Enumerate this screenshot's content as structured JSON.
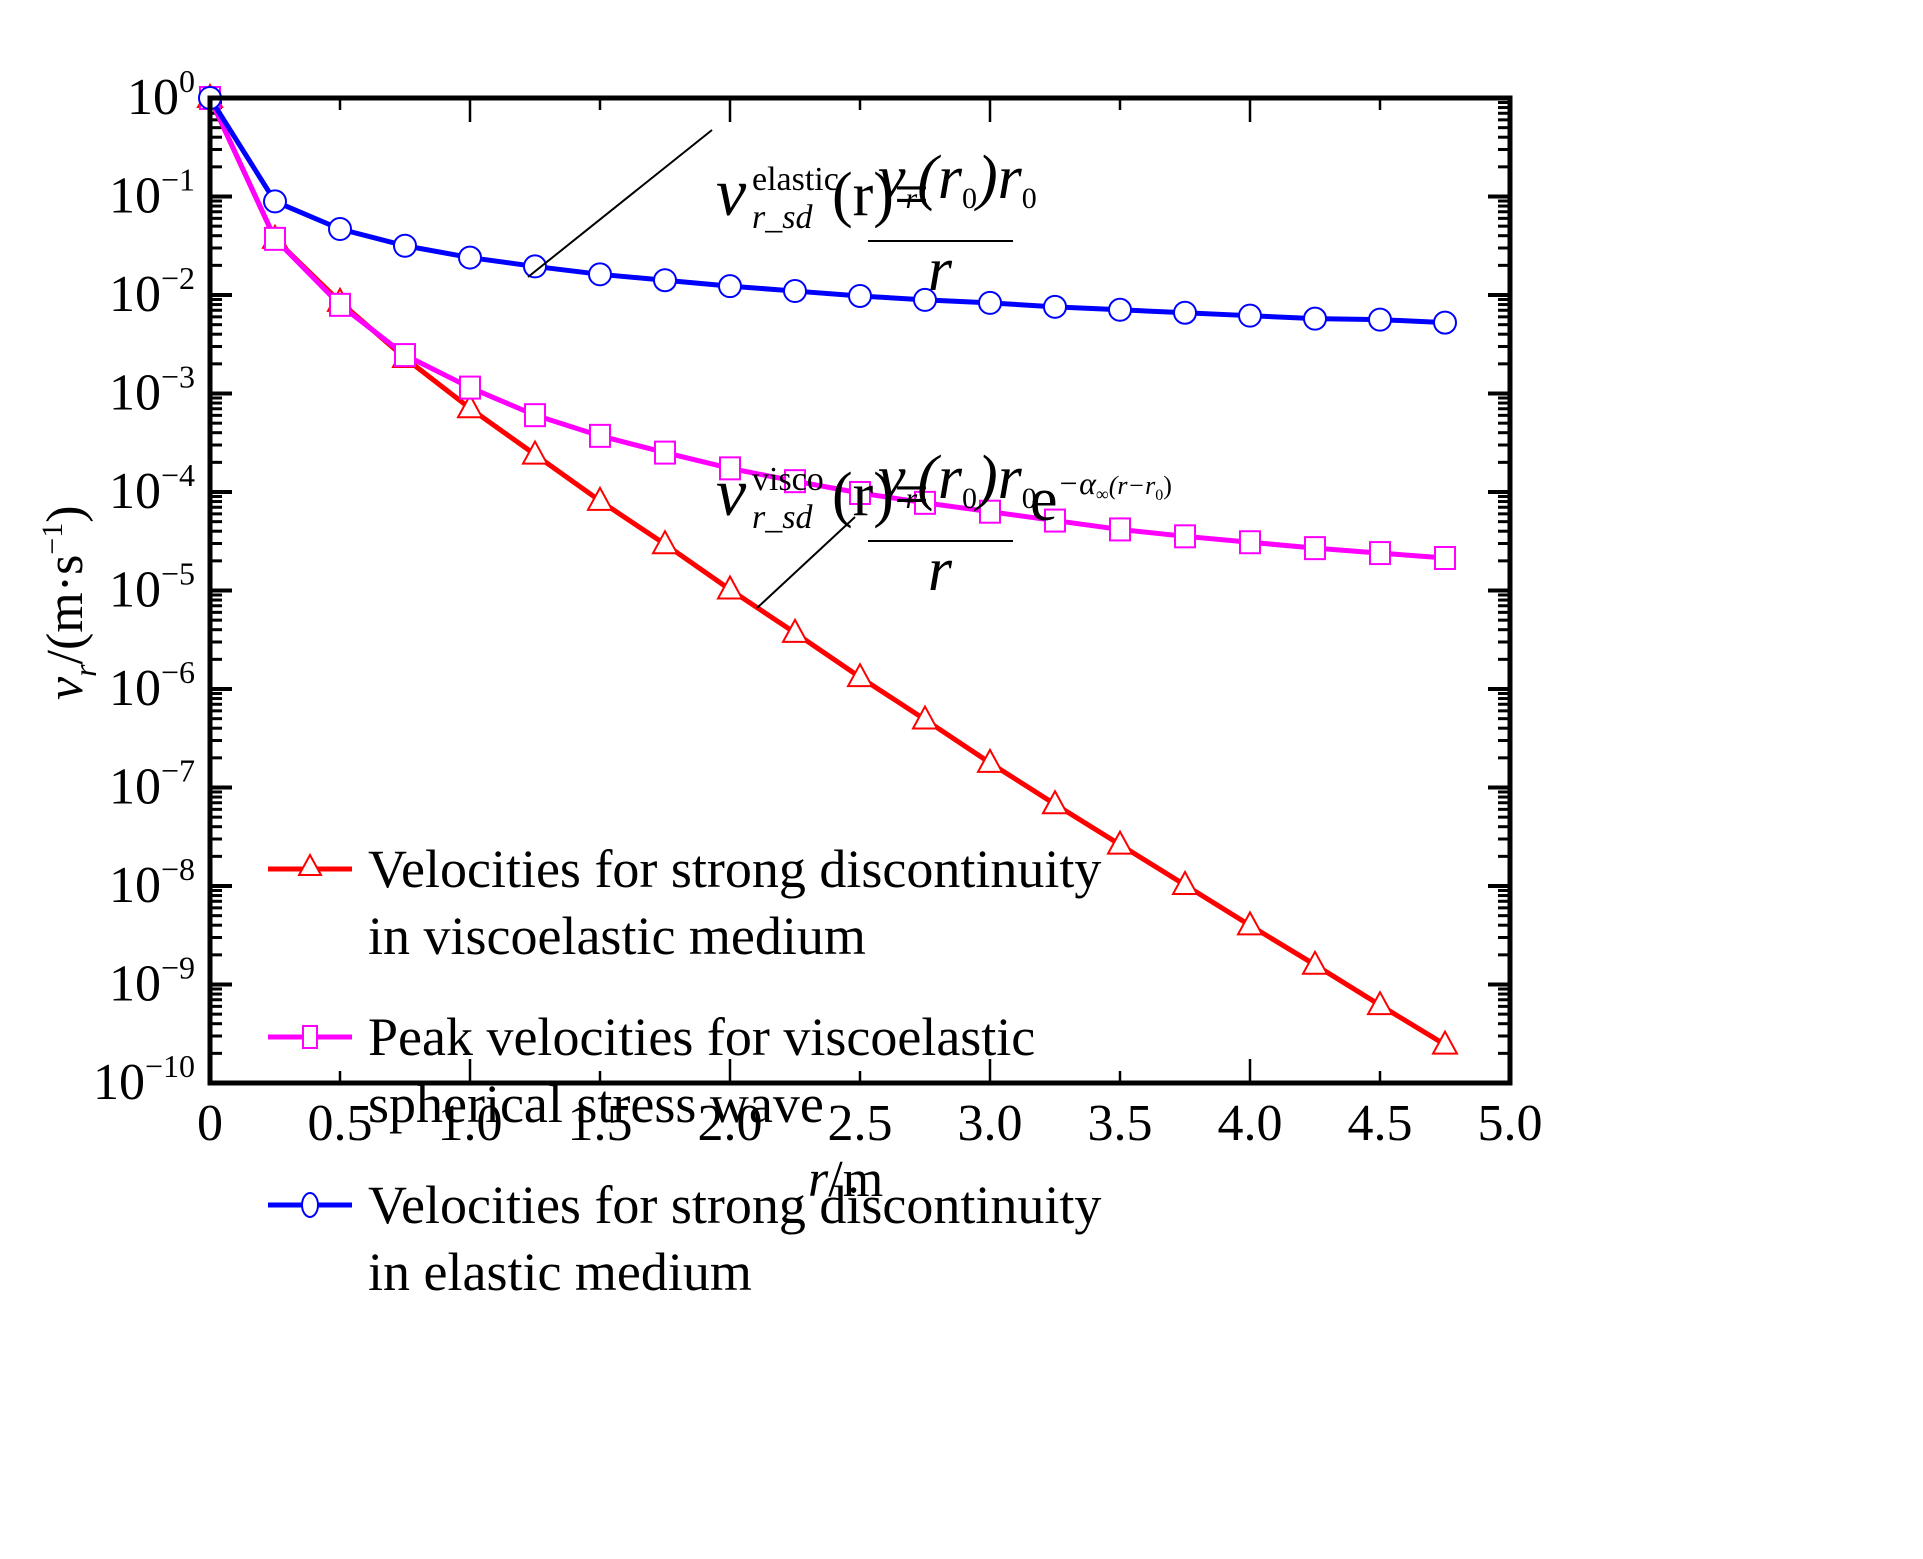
{
  "chart_data": {
    "type": "line",
    "title": "",
    "xlabel": "r/m",
    "xlabel_parts": {
      "var": "r",
      "unit": "/m"
    },
    "ylabel": "v_r/(m·s^-1)",
    "ylabel_parts": {
      "var": "v",
      "sub": "r",
      "unit": "/(m·s",
      "exp": "−1",
      "close": ")"
    },
    "xlim": [
      0,
      5.0
    ],
    "ylim": [
      1e-10,
      1
    ],
    "yscale": "log",
    "grid": false,
    "legend_position": "bottom-left",
    "x_ticks": [
      "0",
      "0.5",
      "1.0",
      "1.5",
      "2.0",
      "2.5",
      "3.0",
      "3.5",
      "4.0",
      "4.5",
      "5.0"
    ],
    "x_tick_values": [
      0,
      0.5,
      1.0,
      1.5,
      2.0,
      2.5,
      3.0,
      3.5,
      4.0,
      4.5,
      5.0
    ],
    "y_ticks": [
      {
        "base": "10",
        "exp": "0"
      },
      {
        "base": "10",
        "exp": "−1"
      },
      {
        "base": "10",
        "exp": "−2"
      },
      {
        "base": "10",
        "exp": "−3"
      },
      {
        "base": "10",
        "exp": "−4"
      },
      {
        "base": "10",
        "exp": "−5"
      },
      {
        "base": "10",
        "exp": "−6"
      },
      {
        "base": "10",
        "exp": "−7"
      },
      {
        "base": "10",
        "exp": "−8"
      },
      {
        "base": "10",
        "exp": "−9"
      },
      {
        "base": "10",
        "exp": "−10"
      }
    ],
    "y_tick_exponents": [
      0,
      -1,
      -2,
      -3,
      -4,
      -5,
      -6,
      -7,
      -8,
      -9,
      -10
    ],
    "x": [
      0,
      0.25,
      0.5,
      0.75,
      1.0,
      1.25,
      1.5,
      1.75,
      2.0,
      2.25,
      2.5,
      2.75,
      3.0,
      3.25,
      3.5,
      3.75,
      4.0,
      4.25,
      4.5,
      4.75
    ],
    "series": [
      {
        "name": "Velocities for strong discontinuity in viscoelastic medium",
        "legend_lines": [
          "Velocities for strong discontinuity",
          "in viscoelastic medium"
        ],
        "color": "#ff0000",
        "marker": "triangle",
        "log10_values": [
          0,
          -1.43,
          -2.07,
          -2.64,
          -3.15,
          -3.62,
          -4.09,
          -4.53,
          -4.99,
          -5.43,
          -5.88,
          -6.31,
          -6.75,
          -7.17,
          -7.58,
          -7.99,
          -8.4,
          -8.8,
          -9.21,
          -9.61
        ],
        "values": [
          1.0,
          0.037,
          0.0085,
          0.0023,
          0.00071,
          0.00024,
          8.1e-05,
          2.9e-05,
          1e-05,
          3.7e-06,
          1.3e-06,
          4.9e-07,
          1.8e-07,
          6.8e-08,
          2.6e-08,
          1e-08,
          4e-09,
          1.6e-09,
          6.2e-10,
          2.5e-10
        ]
      },
      {
        "name": "Peak velocities for viscoelastic spherical stress wave",
        "legend_lines": [
          "Peak velocities for viscoelastic",
          "spherical stress wave"
        ],
        "color": "#ff00ff",
        "marker": "square",
        "log10_values": [
          0,
          -1.43,
          -2.1,
          -2.61,
          -2.94,
          -3.22,
          -3.43,
          -3.6,
          -3.76,
          -3.89,
          -4.01,
          -4.11,
          -4.2,
          -4.29,
          -4.38,
          -4.45,
          -4.51,
          -4.57,
          -4.62,
          -4.67
        ],
        "values": [
          1.0,
          0.037,
          0.0079,
          0.0025,
          0.00115,
          0.0006,
          0.00037,
          0.00025,
          0.000175,
          0.00013,
          9.8e-05,
          7.8e-05,
          6.3e-05,
          5.1e-05,
          4.2e-05,
          3.6e-05,
          3.1e-05,
          2.7e-05,
          2.4e-05,
          2.1e-05
        ]
      },
      {
        "name": "Velocities for strong discontinuity in elastic medium",
        "legend_lines": [
          "Velocities for strong discontinuity",
          "in elastic medium"
        ],
        "color": "#0000ff",
        "marker": "circle",
        "log10_values": [
          0,
          -1.05,
          -1.33,
          -1.5,
          -1.62,
          -1.71,
          -1.79,
          -1.85,
          -1.91,
          -1.96,
          -2.01,
          -2.05,
          -2.08,
          -2.12,
          -2.15,
          -2.18,
          -2.21,
          -2.24,
          -2.25,
          -2.28
        ],
        "values": [
          1.0,
          0.089,
          0.047,
          0.032,
          0.024,
          0.0195,
          0.016,
          0.014,
          0.0123,
          0.011,
          0.0098,
          0.0089,
          0.0082,
          0.0076,
          0.0071,
          0.0066,
          0.0062,
          0.0058,
          0.0055,
          0.0052
        ]
      }
    ],
    "annotations": [
      {
        "label": "elastic-equation",
        "lhs_var": "v",
        "lhs_sup": "elastic",
        "lhs_sub": "r_sd",
        "lhs_arg": "(r)=",
        "numerator": "v_r(r_0)r_0",
        "num_v": "v",
        "num_v_sub": "r",
        "num_mid": "(r",
        "num_mid_sub": "0",
        "num_end": ")r",
        "num_end_sub": "0",
        "denominator": "r",
        "points_to_series": "Velocities for strong discontinuity in elastic medium"
      },
      {
        "label": "visco-equation",
        "lhs_var": "v",
        "lhs_sup": "visco",
        "lhs_sub": "r_sd",
        "lhs_arg": "(r)=",
        "numerator": "v_r(r_0)r_0",
        "num_v": "v",
        "num_v_sub": "r",
        "num_mid": "(r",
        "num_mid_sub": "0",
        "num_end": ")r",
        "num_end_sub": "0",
        "denominator": "r",
        "exp_base": "e",
        "exp_text": "−α",
        "exp_sub": "∞",
        "exp_arg": "(r−r",
        "exp_arg_sub": "0",
        "exp_close": ")",
        "points_to_series": "Velocities for strong discontinuity in viscoelastic medium"
      }
    ]
  }
}
